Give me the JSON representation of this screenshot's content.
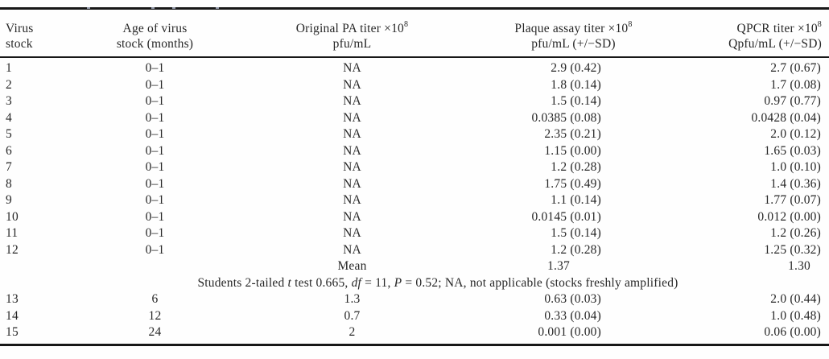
{
  "table": {
    "headers": [
      {
        "line1": "Virus",
        "sup": "",
        "line2": "stock"
      },
      {
        "line1": "Age of virus",
        "sup": "",
        "line2": "stock (months)"
      },
      {
        "line1": "Original PA titer ×10",
        "sup": "8",
        "line2": "pfu/mL"
      },
      {
        "line1": "Plaque assay titer ×10",
        "sup": "8",
        "line2": "pfu/mL (+/−SD)"
      },
      {
        "line1": "QPCR titer ×10",
        "sup": "8",
        "line2": "Qpfu/mL (+/−SD)"
      }
    ],
    "rows_fresh": [
      {
        "stock": "1",
        "age": "0–1",
        "orig": "NA",
        "plaque": "2.9 (0.42)",
        "qpcr": "2.7 (0.67)"
      },
      {
        "stock": "2",
        "age": "0–1",
        "orig": "NA",
        "plaque": "1.8 (0.14)",
        "qpcr": "1.7 (0.08)"
      },
      {
        "stock": "3",
        "age": "0–1",
        "orig": "NA",
        "plaque": "1.5 (0.14)",
        "qpcr": "0.97 (0.77)"
      },
      {
        "stock": "4",
        "age": "0–1",
        "orig": "NA",
        "plaque": "0.0385 (0.08)",
        "qpcr": "0.0428 (0.04)"
      },
      {
        "stock": "5",
        "age": "0–1",
        "orig": "NA",
        "plaque": "2.35 (0.21)",
        "qpcr": "2.0 (0.12)"
      },
      {
        "stock": "6",
        "age": "0–1",
        "orig": "NA",
        "plaque": "1.15 (0.00)",
        "qpcr": "1.65 (0.03)"
      },
      {
        "stock": "7",
        "age": "0–1",
        "orig": "NA",
        "plaque": "1.2 (0.28)",
        "qpcr": "1.0 (0.10)"
      },
      {
        "stock": "8",
        "age": "0–1",
        "orig": "NA",
        "plaque": "1.75 (0.49)",
        "qpcr": "1.4 (0.36)"
      },
      {
        "stock": "9",
        "age": "0–1",
        "orig": "NA",
        "plaque": "1.1 (0.14)",
        "qpcr": "1.77 (0.07)"
      },
      {
        "stock": "10",
        "age": "0–1",
        "orig": "NA",
        "plaque": "0.0145 (0.01)",
        "qpcr": "0.012 (0.00)"
      },
      {
        "stock": "11",
        "age": "0–1",
        "orig": "NA",
        "plaque": "1.5 (0.14)",
        "qpcr": "1.2 (0.26)"
      },
      {
        "stock": "12",
        "age": "0–1",
        "orig": "NA",
        "plaque": "1.2 (0.28)",
        "qpcr": "1.25 (0.32)"
      }
    ],
    "mean_row": {
      "label": "Mean",
      "plaque": "1.37",
      "qpcr": "1.30"
    },
    "stats_note": {
      "segments": [
        {
          "text": "Students 2-tailed ",
          "italic": false
        },
        {
          "text": "t",
          "italic": true
        },
        {
          "text": " test 0.665, ",
          "italic": false
        },
        {
          "text": "df",
          "italic": true
        },
        {
          "text": " = 11, ",
          "italic": false
        },
        {
          "text": "P",
          "italic": true
        },
        {
          "text": " = 0.52; NA, not applicable (stocks freshly amplified)",
          "italic": false
        }
      ]
    },
    "rows_aged": [
      {
        "stock": "13",
        "age": "6",
        "orig": "1.3",
        "plaque": "0.63 (0.03)",
        "qpcr": "2.0 (0.44)"
      },
      {
        "stock": "14",
        "age": "12",
        "orig": "0.7",
        "plaque": "0.33 (0.04)",
        "qpcr": "1.0 (0.48)"
      },
      {
        "stock": "15",
        "age": "24",
        "orig": "2",
        "plaque": "0.001 (0.00)",
        "qpcr": "0.06 (0.00)"
      }
    ]
  }
}
